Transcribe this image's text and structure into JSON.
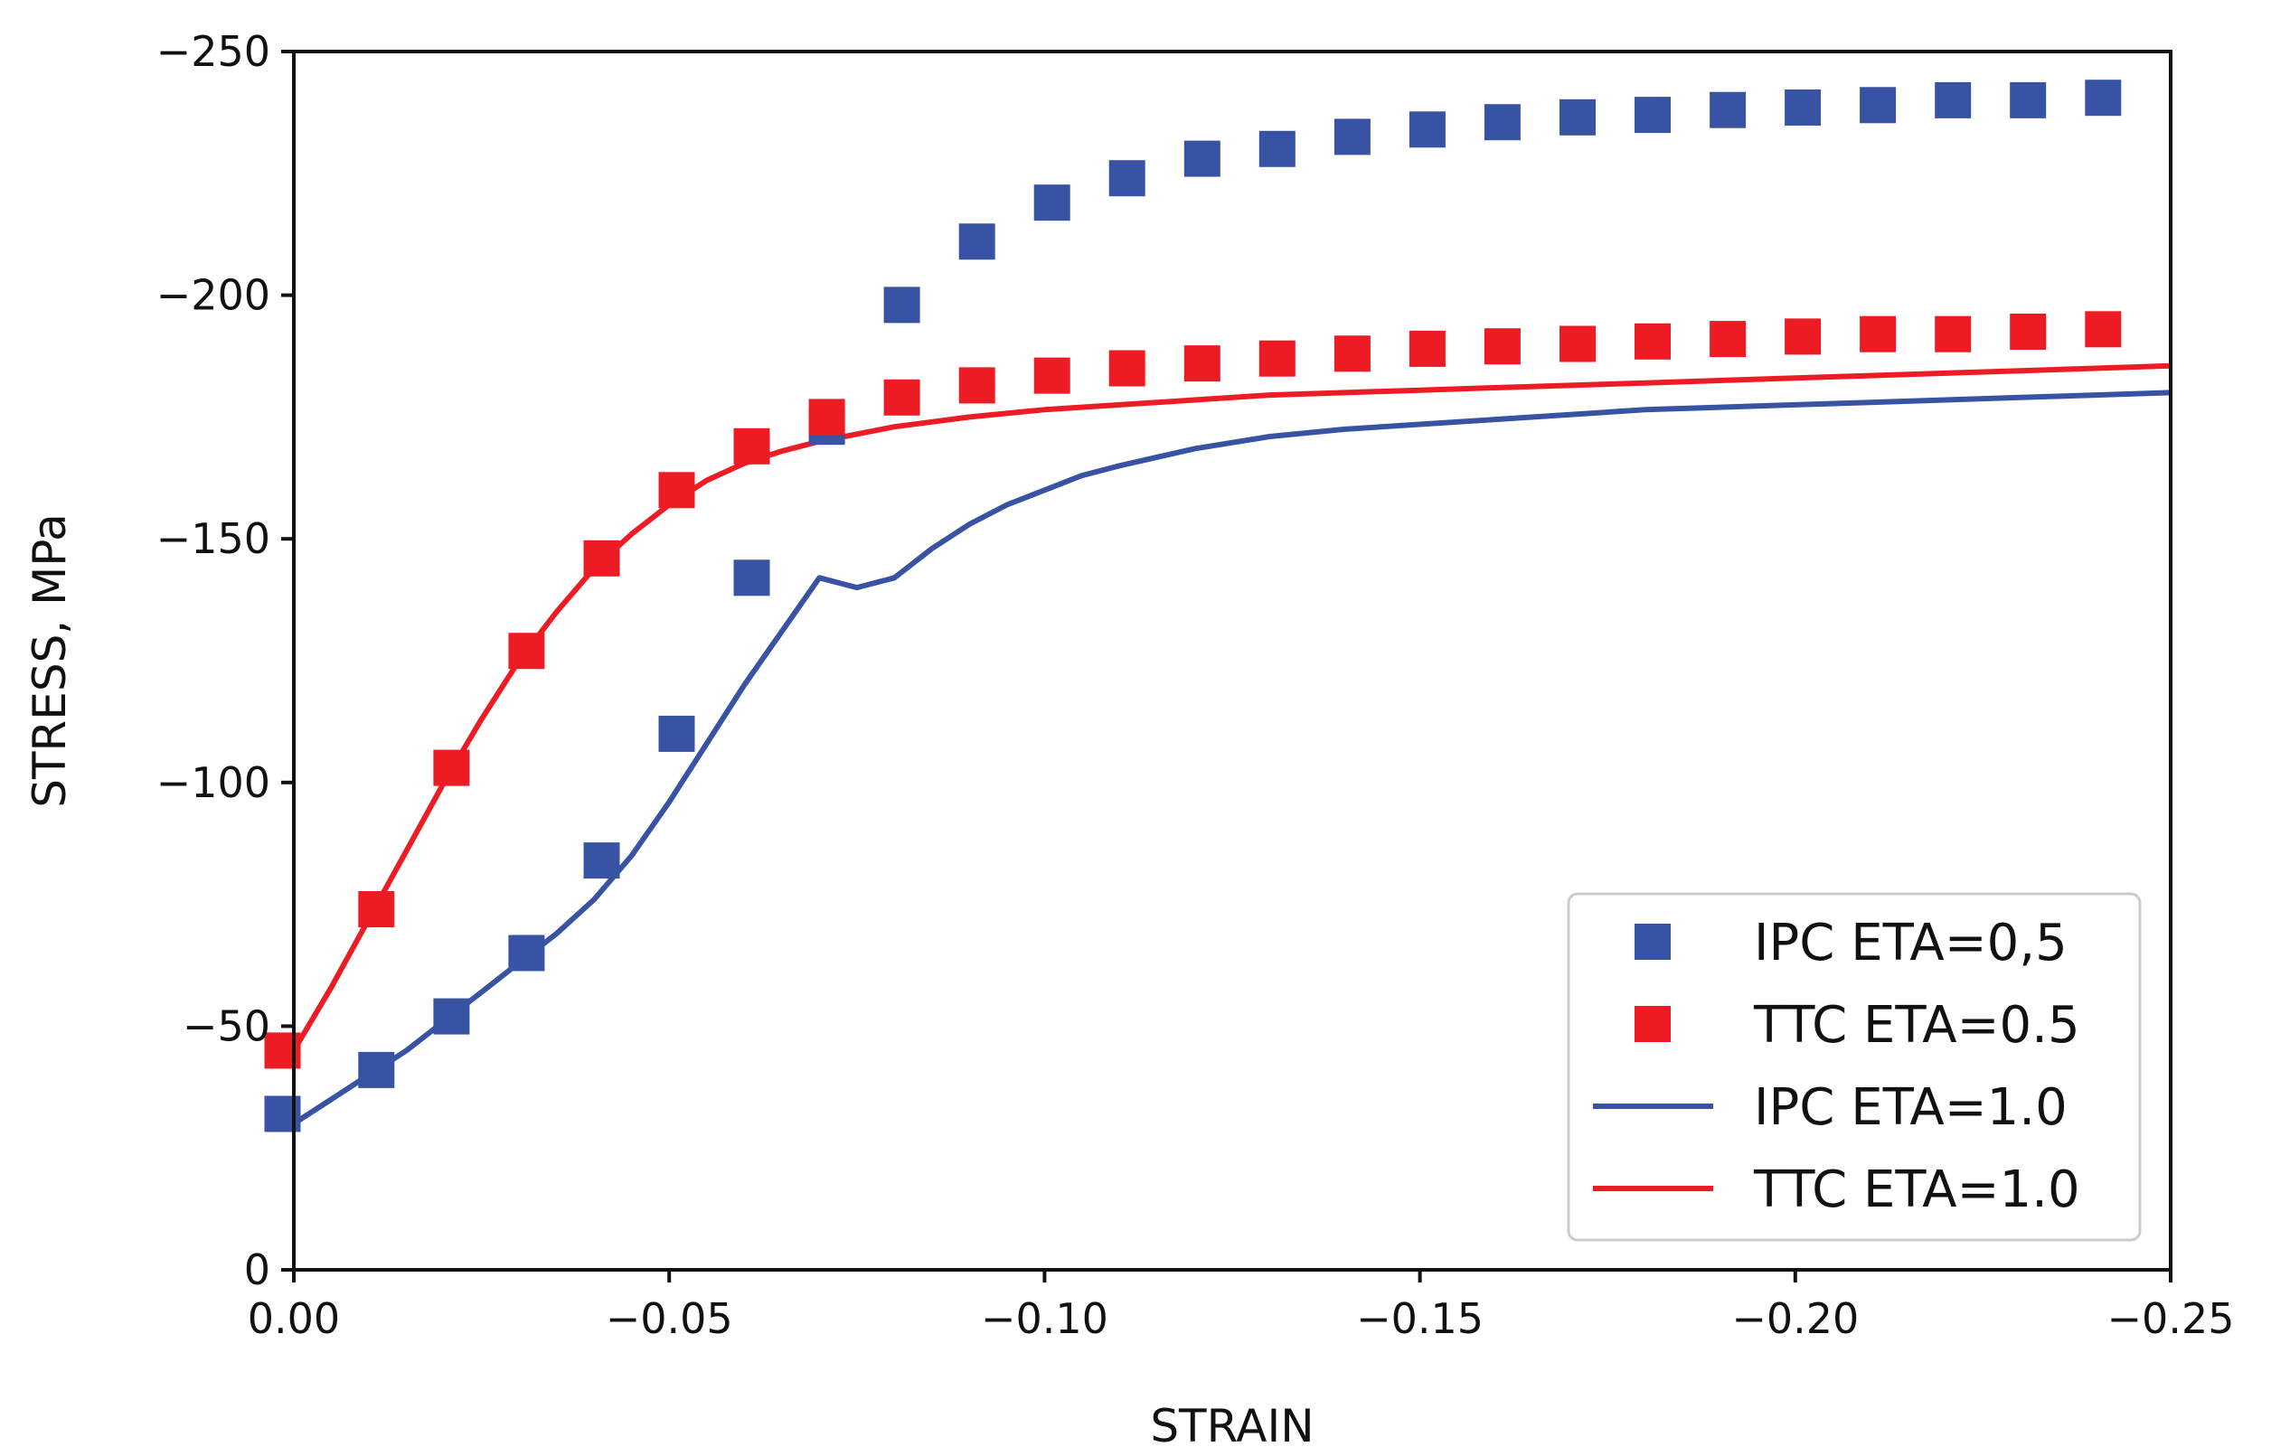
{
  "chart_data": {
    "type": "scatter",
    "title": "",
    "xlabel": "STRAIN",
    "ylabel": "STRESS, MPa",
    "xlim": [
      0.0,
      -0.25
    ],
    "ylim": [
      0,
      -250
    ],
    "grid": false,
    "legend_position": "bottom-right",
    "xticks": [
      {
        "value": 0.0,
        "label": "0.00"
      },
      {
        "value": -0.05,
        "label": "−0.05"
      },
      {
        "value": -0.1,
        "label": "−0.10"
      },
      {
        "value": -0.15,
        "label": "−0.15"
      },
      {
        "value": -0.2,
        "label": "−0.20"
      },
      {
        "value": -0.25,
        "label": "−0.25"
      }
    ],
    "yticks": [
      {
        "value": 0,
        "label": "0"
      },
      {
        "value": -50,
        "label": "−50"
      },
      {
        "value": -100,
        "label": "−100"
      },
      {
        "value": -150,
        "label": "−150"
      },
      {
        "value": -200,
        "label": "−200"
      },
      {
        "value": -250,
        "label": "−250"
      }
    ],
    "series": [
      {
        "name": "IPC ETA=0,5",
        "kind": "markers",
        "marker": "square",
        "color": "#3853a4",
        "x": [
          0.0015,
          -0.011,
          -0.021,
          -0.031,
          -0.041,
          -0.051,
          -0.061,
          -0.071,
          -0.081,
          -0.091,
          -0.101,
          -0.111,
          -0.121,
          -0.131,
          -0.141,
          -0.151,
          -0.161,
          -0.171,
          -0.181,
          -0.191,
          -0.201,
          -0.211,
          -0.221,
          -0.231,
          -0.241
        ],
        "y": [
          -32,
          -41,
          -52,
          -65,
          -84,
          -110,
          -142,
          -173,
          -198,
          -211,
          -219,
          -224,
          -228,
          -230,
          -232.5,
          -234,
          -235.5,
          -236.5,
          -237,
          -238,
          -238.5,
          -239,
          -240,
          -240,
          -240.5
        ]
      },
      {
        "name": "TTC ETA=0.5",
        "kind": "markers",
        "marker": "square",
        "color": "#ed1c24",
        "x": [
          0.0015,
          -0.011,
          -0.021,
          -0.031,
          -0.041,
          -0.051,
          -0.061,
          -0.071,
          -0.081,
          -0.091,
          -0.101,
          -0.111,
          -0.121,
          -0.131,
          -0.141,
          -0.151,
          -0.161,
          -0.171,
          -0.181,
          -0.191,
          -0.201,
          -0.211,
          -0.221,
          -0.231,
          -0.241
        ],
        "y": [
          -45,
          -74,
          -103,
          -127,
          -146,
          -160,
          -169,
          -175,
          -179,
          -181.5,
          -183.5,
          -185,
          -186,
          -187,
          -188,
          -189,
          -189.5,
          -190,
          -190.5,
          -191,
          -191.5,
          -192,
          -192,
          -192.5,
          -193
        ]
      },
      {
        "name": "IPC ETA=1.0",
        "kind": "line",
        "color": "#3853a4",
        "x": [
          0.0,
          -0.005,
          -0.01,
          -0.015,
          -0.02,
          -0.025,
          -0.03,
          -0.035,
          -0.04,
          -0.045,
          -0.05,
          -0.055,
          -0.06,
          -0.065,
          -0.07,
          -0.075,
          -0.08,
          -0.085,
          -0.09,
          -0.095,
          -0.1,
          -0.105,
          -0.11,
          -0.12,
          -0.13,
          -0.14,
          -0.15,
          -0.16,
          -0.17,
          -0.18,
          -0.19,
          -0.2,
          -0.21,
          -0.22,
          -0.23,
          -0.24,
          -0.25
        ],
        "y": [
          -30,
          -35,
          -40,
          -45,
          -51,
          -57,
          -63,
          -69,
          -76,
          -85,
          -96,
          -108,
          -120,
          -131,
          -142,
          -140,
          -142,
          -148,
          -153,
          -157,
          -160,
          -163,
          -165,
          -168.5,
          -171,
          -172.5,
          -173.5,
          -174.5,
          -175.5,
          -176.5,
          -177,
          -177.5,
          -178,
          -178.5,
          -179,
          -179.5,
          -180
        ]
      },
      {
        "name": "TTC ETA=1.0",
        "kind": "line",
        "color": "#ed1c24",
        "x": [
          0.0,
          -0.005,
          -0.01,
          -0.015,
          -0.02,
          -0.025,
          -0.03,
          -0.035,
          -0.04,
          -0.045,
          -0.05,
          -0.055,
          -0.06,
          -0.065,
          -0.07,
          -0.075,
          -0.08,
          -0.09,
          -0.1,
          -0.11,
          -0.12,
          -0.13,
          -0.14,
          -0.15,
          -0.16,
          -0.17,
          -0.18,
          -0.19,
          -0.2,
          -0.21,
          -0.22,
          -0.23,
          -0.24,
          -0.25
        ],
        "y": [
          -45,
          -58,
          -72,
          -86,
          -100,
          -113,
          -125,
          -135,
          -144,
          -151,
          -157,
          -162,
          -165.5,
          -168,
          -170,
          -171.5,
          -173,
          -175,
          -176.5,
          -177.5,
          -178.5,
          -179.5,
          -180,
          -180.5,
          -181,
          -181.5,
          -182,
          -182.5,
          -183,
          -183.5,
          -184,
          -184.5,
          -185,
          -185.5
        ]
      }
    ]
  }
}
